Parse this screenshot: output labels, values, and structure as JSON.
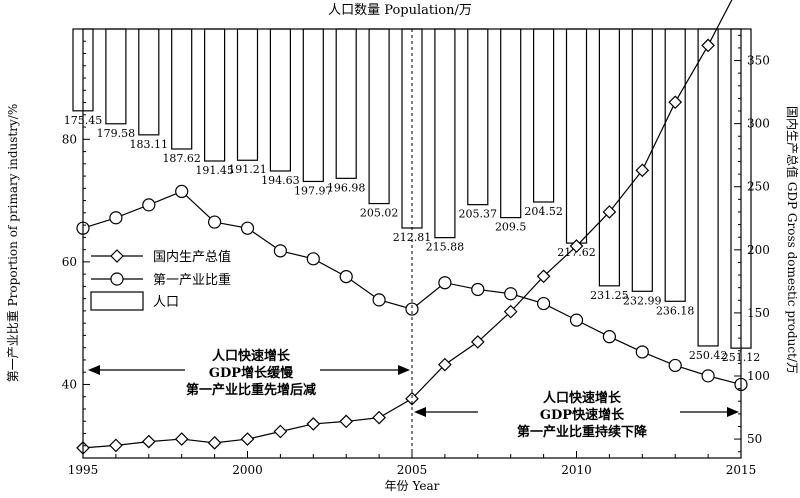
{
  "chart_data": {
    "type": "bar",
    "title": "人口数量 Population/万",
    "xlabel": "年份 Year",
    "ylabel_left": "第一产业比重 Proportion of primary industry/%",
    "ylabel_right": "国内生产总值 GDP Gross domestic product/万",
    "x_range": [
      1995,
      2015
    ],
    "x_ticks": [
      1995,
      2000,
      2005,
      2010,
      2015
    ],
    "y_left_range": [
      28,
      98
    ],
    "y_left_ticks": [
      40,
      60,
      80
    ],
    "y_right_range": [
      35,
      375
    ],
    "y_right_ticks": [
      50,
      100,
      150,
      200,
      250,
      300,
      350
    ],
    "population_range": [
      150,
      260
    ],
    "years": [
      1995,
      1996,
      1997,
      1998,
      1999,
      2000,
      2001,
      2002,
      2003,
      2004,
      2005,
      2006,
      2007,
      2008,
      2009,
      2010,
      2011,
      2012,
      2013,
      2014,
      2015
    ],
    "series": [
      {
        "name": "人口",
        "kind": "bar",
        "values": [
          175.45,
          179.58,
          183.11,
          187.62,
          191.45,
          191.21,
          194.63,
          197.97,
          196.98,
          205.02,
          212.81,
          215.88,
          205.37,
          209.5,
          204.52,
          217.62,
          231.25,
          232.99,
          236.18,
          250.42,
          251.12
        ],
        "labels": [
          "175.45",
          "179.58",
          "183.11",
          "187.62",
          "191.45",
          "191.21",
          "194.63",
          "197.97",
          "196.98",
          "205.02",
          "212.81",
          "215.88",
          "205.37",
          "209.5",
          "204.52",
          "217.62",
          "231.25",
          "232.99",
          "236.18",
          "250.42",
          "251.12"
        ]
      },
      {
        "name": "第一产业比重",
        "kind": "line",
        "marker": "circle",
        "axis": "left",
        "values": [
          65.5,
          67.2,
          69.3,
          71.5,
          66.5,
          65.5,
          61.8,
          60.5,
          57.6,
          53.8,
          52.3,
          56.6,
          55.5,
          54.8,
          53.2,
          50.5,
          47.8,
          45.3,
          43.1,
          41.4,
          40.0
        ]
      },
      {
        "name": "国内生产总值",
        "kind": "line",
        "marker": "diamond",
        "axis": "right",
        "values": [
          43,
          45,
          48,
          50,
          47,
          50,
          56,
          62,
          64,
          67,
          82,
          109,
          127,
          151,
          179,
          203,
          230,
          263,
          317,
          362,
          412
        ]
      }
    ],
    "annotations": {
      "divider_year": 2005,
      "left_text": [
        "人口快速增长",
        "GDP增长缓慢",
        "第一产业比重先增后减"
      ],
      "right_text": [
        "人口快速增长",
        "GDP快速增长",
        "第一产业比重持续下降"
      ]
    },
    "legend_position": "left-middle",
    "grid": false
  }
}
